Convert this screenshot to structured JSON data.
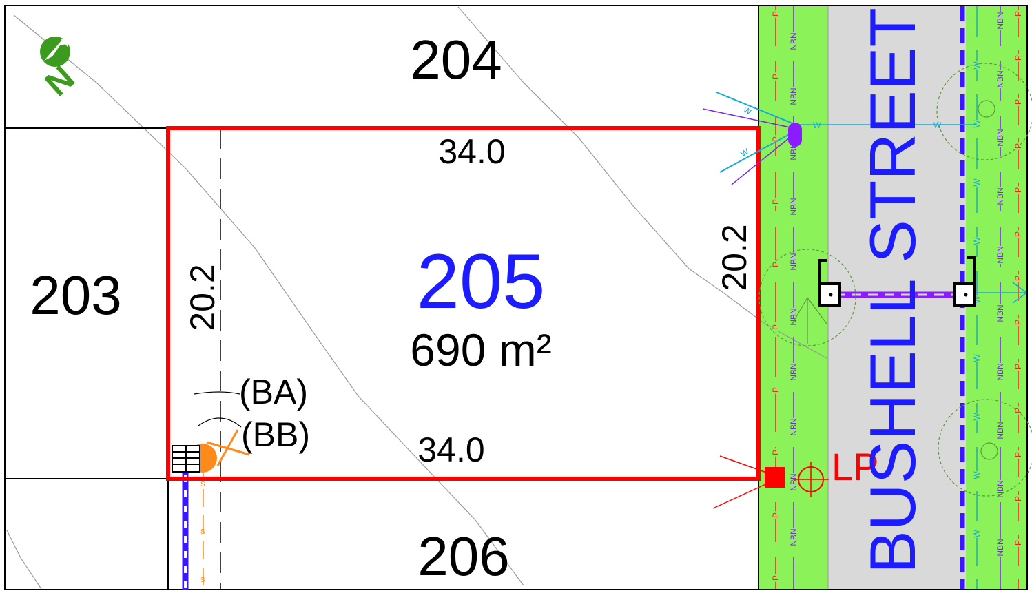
{
  "lots": {
    "lot_204": "204",
    "lot_203": "203",
    "lot_206": "206",
    "subject": {
      "number": "205",
      "area": "690 m²",
      "frontage_top": "34.0",
      "frontage_bottom": "34.0",
      "depth_left": "20.2",
      "depth_right": "20.2"
    }
  },
  "street": {
    "name": "BUSHELL STREET"
  },
  "labels": {
    "lp": "LP",
    "ba": "(BA)",
    "bb": "(BB)",
    "north": "N"
  },
  "service_codes": {
    "power": "P",
    "nbn": "NBN",
    "water": "W",
    "sewer": "S"
  },
  "colors": {
    "subject_boundary": "#ff0000",
    "verge": "#8cf25a",
    "road": "#d9d9d9",
    "street_text": "#1c1cff",
    "lot_number": "#1c1cff",
    "power_line": "#ff2020",
    "nbn_line": "#7a2ae0",
    "water_line": "#18a9d9",
    "sewer_line": "#ff8a1c",
    "drainage": "#3a18ff",
    "north_arrow": "#3c9a1e",
    "tree_outline": "#5a9a3c"
  }
}
